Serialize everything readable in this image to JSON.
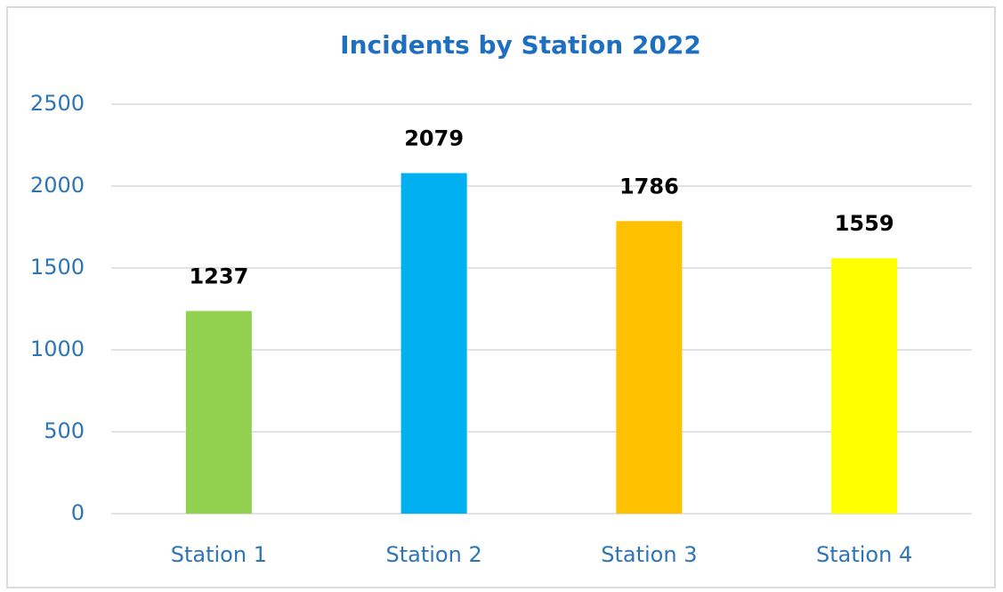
{
  "chart_data": {
    "type": "bar",
    "title": "Incidents by Station 2022",
    "categories": [
      "Station 1",
      "Station 2",
      "Station 3",
      "Station 4"
    ],
    "values": [
      1237,
      2079,
      1786,
      1559
    ],
    "colors": [
      "#92d050",
      "#00b0f0",
      "#ffc000",
      "#ffff00"
    ],
    "ylim": [
      0,
      2500
    ],
    "yticks": [
      0,
      500,
      1000,
      1500,
      2000,
      2500
    ],
    "grid": true
  }
}
